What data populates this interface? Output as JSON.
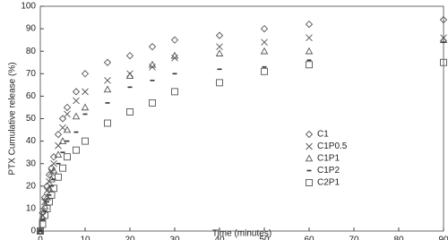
{
  "chart_data": {
    "type": "scatter",
    "x_label": "Time (minutes)",
    "y_label": "PTX Cumulative release (%)",
    "x": [
      0,
      0.5,
      1,
      1.5,
      2,
      2.5,
      3,
      4,
      5,
      6,
      8,
      10,
      15,
      20,
      25,
      30,
      40,
      50,
      60,
      90
    ],
    "series": [
      {
        "name": "C1",
        "color": "#555555",
        "marker": "diamond",
        "values": [
          0,
          8,
          15,
          20,
          25,
          28,
          33,
          43,
          50,
          55,
          62,
          70,
          75,
          78,
          82,
          85,
          87,
          90,
          92,
          94
        ]
      },
      {
        "name": "C1P0.5",
        "color": "#555555",
        "marker": "x",
        "values": [
          0,
          7,
          13,
          18,
          22,
          26,
          30,
          38,
          46,
          52,
          58,
          62,
          67,
          70,
          73,
          77,
          82,
          84,
          86,
          86
        ]
      },
      {
        "name": "C1P1",
        "color": "#555555",
        "marker": "triangle",
        "values": [
          0,
          6,
          11,
          15,
          19,
          23,
          27,
          34,
          40,
          45,
          51,
          55,
          63,
          69,
          74,
          78,
          79,
          80,
          80,
          85
        ]
      },
      {
        "name": "C1P2",
        "color": "#333333",
        "marker": "dash",
        "values": [
          0,
          5,
          9,
          13,
          16,
          20,
          23,
          30,
          35,
          40,
          44,
          52,
          57,
          64,
          67,
          70,
          72,
          73,
          76,
          84
        ]
      },
      {
        "name": "C2P1",
        "color": "#555555",
        "marker": "square",
        "values": [
          0,
          3,
          7,
          10,
          13,
          16,
          19,
          24,
          28,
          33,
          36,
          40,
          48,
          53,
          57,
          62,
          66,
          71,
          74,
          75
        ]
      }
    ],
    "xlim": [
      0,
      90
    ],
    "xticks": [
      0,
      10,
      20,
      30,
      40,
      50,
      60,
      70,
      80,
      90
    ],
    "ylim": [
      0,
      100
    ],
    "yticks": [
      0,
      10,
      20,
      30,
      40,
      50,
      60,
      70,
      80,
      90,
      100
    ],
    "legend": "center-right"
  }
}
